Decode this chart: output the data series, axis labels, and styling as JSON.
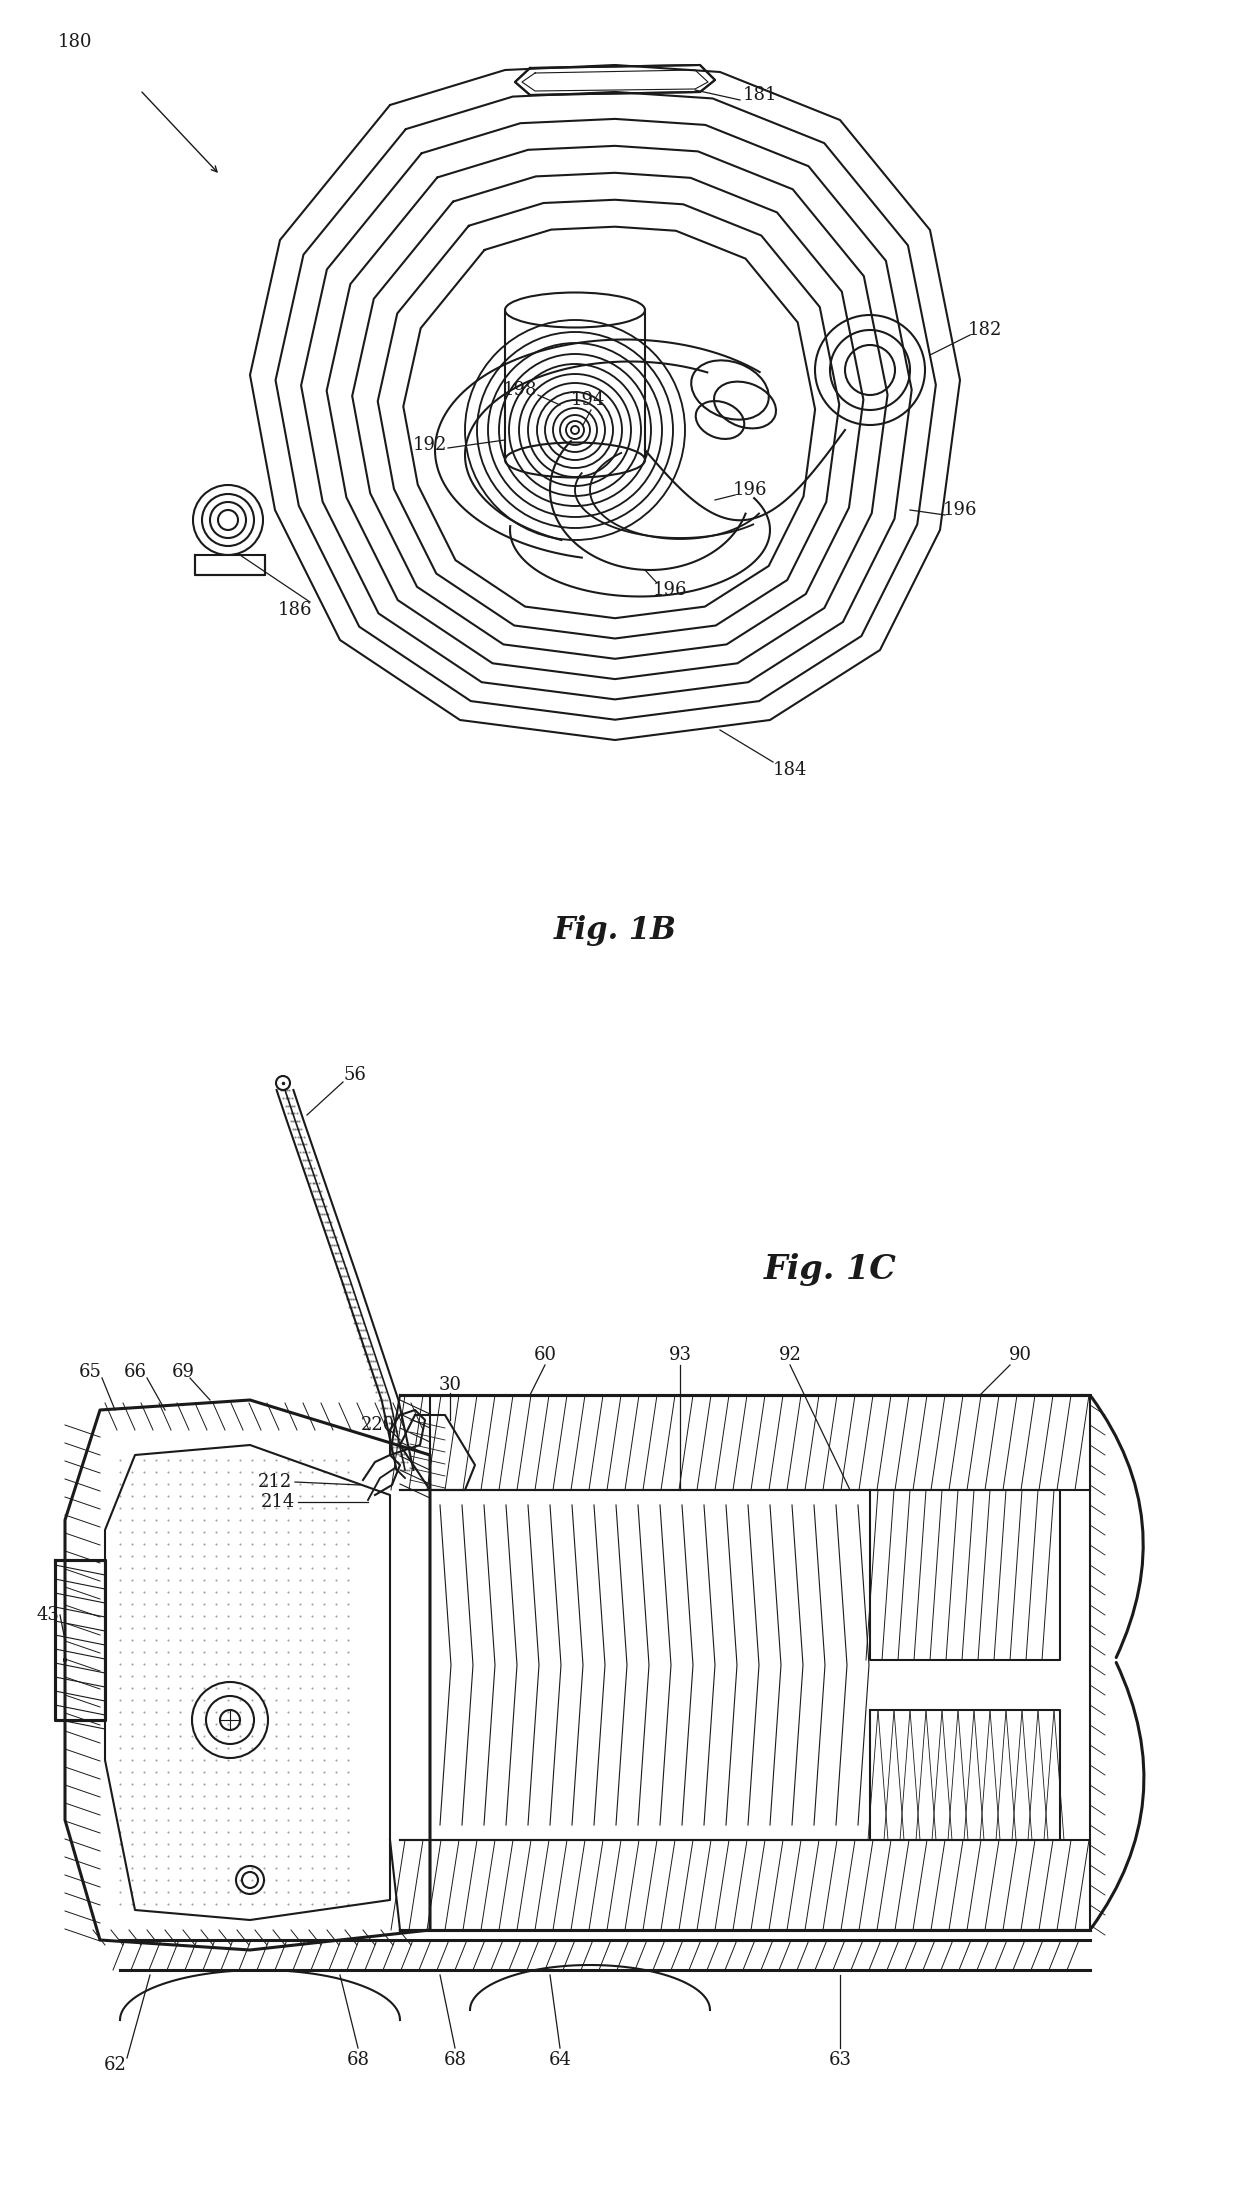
{
  "fig_title_1b": "Fig. 1B",
  "fig_title_1c": "Fig. 1C",
  "background_color": "#ffffff",
  "line_color": "#1a1a1a",
  "annotation_fontsize": 13,
  "title_fontsize": 22
}
